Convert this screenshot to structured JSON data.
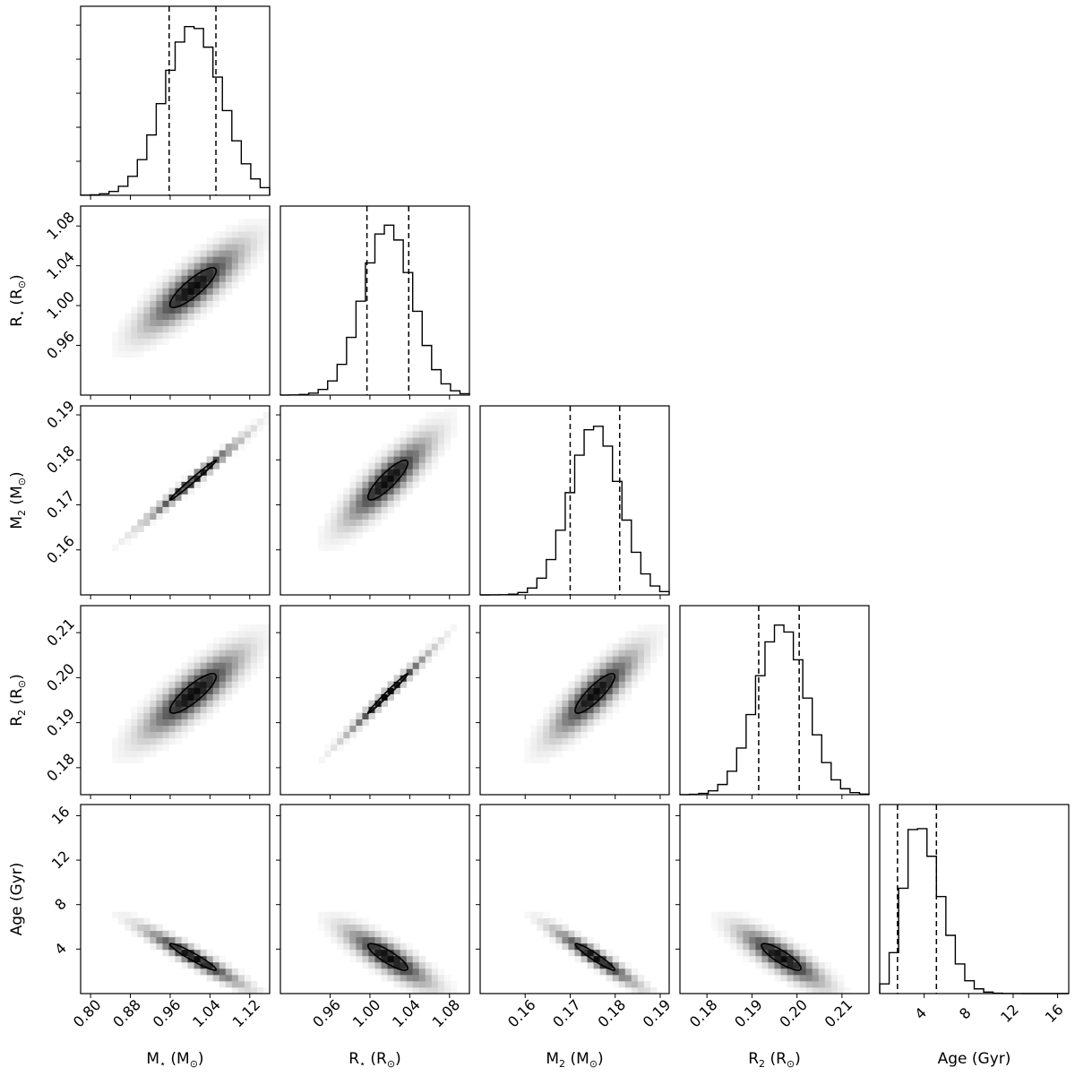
{
  "chart_data": {
    "type": "corner",
    "parameters": [
      {
        "key": "Mstar",
        "label_main": "M",
        "label_sub": "⋆",
        "label_unit": " (M",
        "label_unit_sub": "⊙",
        "label_close": ")",
        "range": [
          0.78,
          1.16
        ],
        "ticks": [
          0.8,
          0.88,
          0.96,
          1.04,
          1.12
        ],
        "tick_labels": [
          "0.80",
          "0.88",
          "0.96",
          "1.04",
          "1.12"
        ],
        "mean": 1.006,
        "sd": 0.058,
        "quantiles": [
          0.958,
          1.052
        ]
      },
      {
        "key": "Rstar",
        "label_main": "R",
        "label_sub": "⋆",
        "label_unit": " (R",
        "label_unit_sub": "⊙",
        "label_close": ")",
        "range": [
          0.91,
          1.1
        ],
        "ticks": [
          0.96,
          1.0,
          1.04,
          1.08
        ],
        "tick_labels": [
          "0.96",
          "1.00",
          "1.04",
          "1.08"
        ],
        "mean": 1.018,
        "sd": 0.025,
        "quantiles": [
          0.997,
          1.039
        ]
      },
      {
        "key": "M2",
        "label_main": "M",
        "label_sub": "2",
        "label_unit": " (M",
        "label_unit_sub": "⊙",
        "label_close": ")",
        "range": [
          0.15,
          0.192
        ],
        "ticks": [
          0.16,
          0.17,
          0.18,
          0.19
        ],
        "tick_labels": [
          "0.16",
          "0.17",
          "0.18",
          "0.19"
        ],
        "mean": 0.1755,
        "sd": 0.0055,
        "quantiles": [
          0.17,
          0.181
        ]
      },
      {
        "key": "R2",
        "label_main": "R",
        "label_sub": "2",
        "label_unit": " (R",
        "label_unit_sub": "⊙",
        "label_close": ")",
        "range": [
          0.174,
          0.216
        ],
        "ticks": [
          0.18,
          0.19,
          0.2,
          0.21
        ],
        "tick_labels": [
          "0.18",
          "0.19",
          "0.20",
          "0.21"
        ],
        "mean": 0.1965,
        "sd": 0.0055,
        "quantiles": [
          0.1915,
          0.2005
        ]
      },
      {
        "key": "Age",
        "label_main": "Age (Gyr)",
        "label_sub": "",
        "label_unit": "",
        "label_unit_sub": "",
        "label_close": "",
        "range": [
          0,
          17
        ],
        "ticks": [
          4,
          8,
          12,
          16
        ],
        "tick_labels": [
          "4",
          "8",
          "12",
          "16"
        ],
        "mean": 3.3,
        "sd": 1.5,
        "quantiles": [
          1.6,
          5.1
        ]
      }
    ],
    "correlations": {
      "1-0": 0.85,
      "2-0": 0.99,
      "2-1": 0.86,
      "3-0": 0.85,
      "3-1": 0.99,
      "3-2": 0.86,
      "4-0": -0.95,
      "4-1": -0.85,
      "4-2": -0.95,
      "4-3": -0.85
    },
    "histogram_bins": 20,
    "density_bins": 30,
    "contour_level_sigma": 0.5,
    "colormap": "greys",
    "line_color": "#000000",
    "grid": false
  }
}
